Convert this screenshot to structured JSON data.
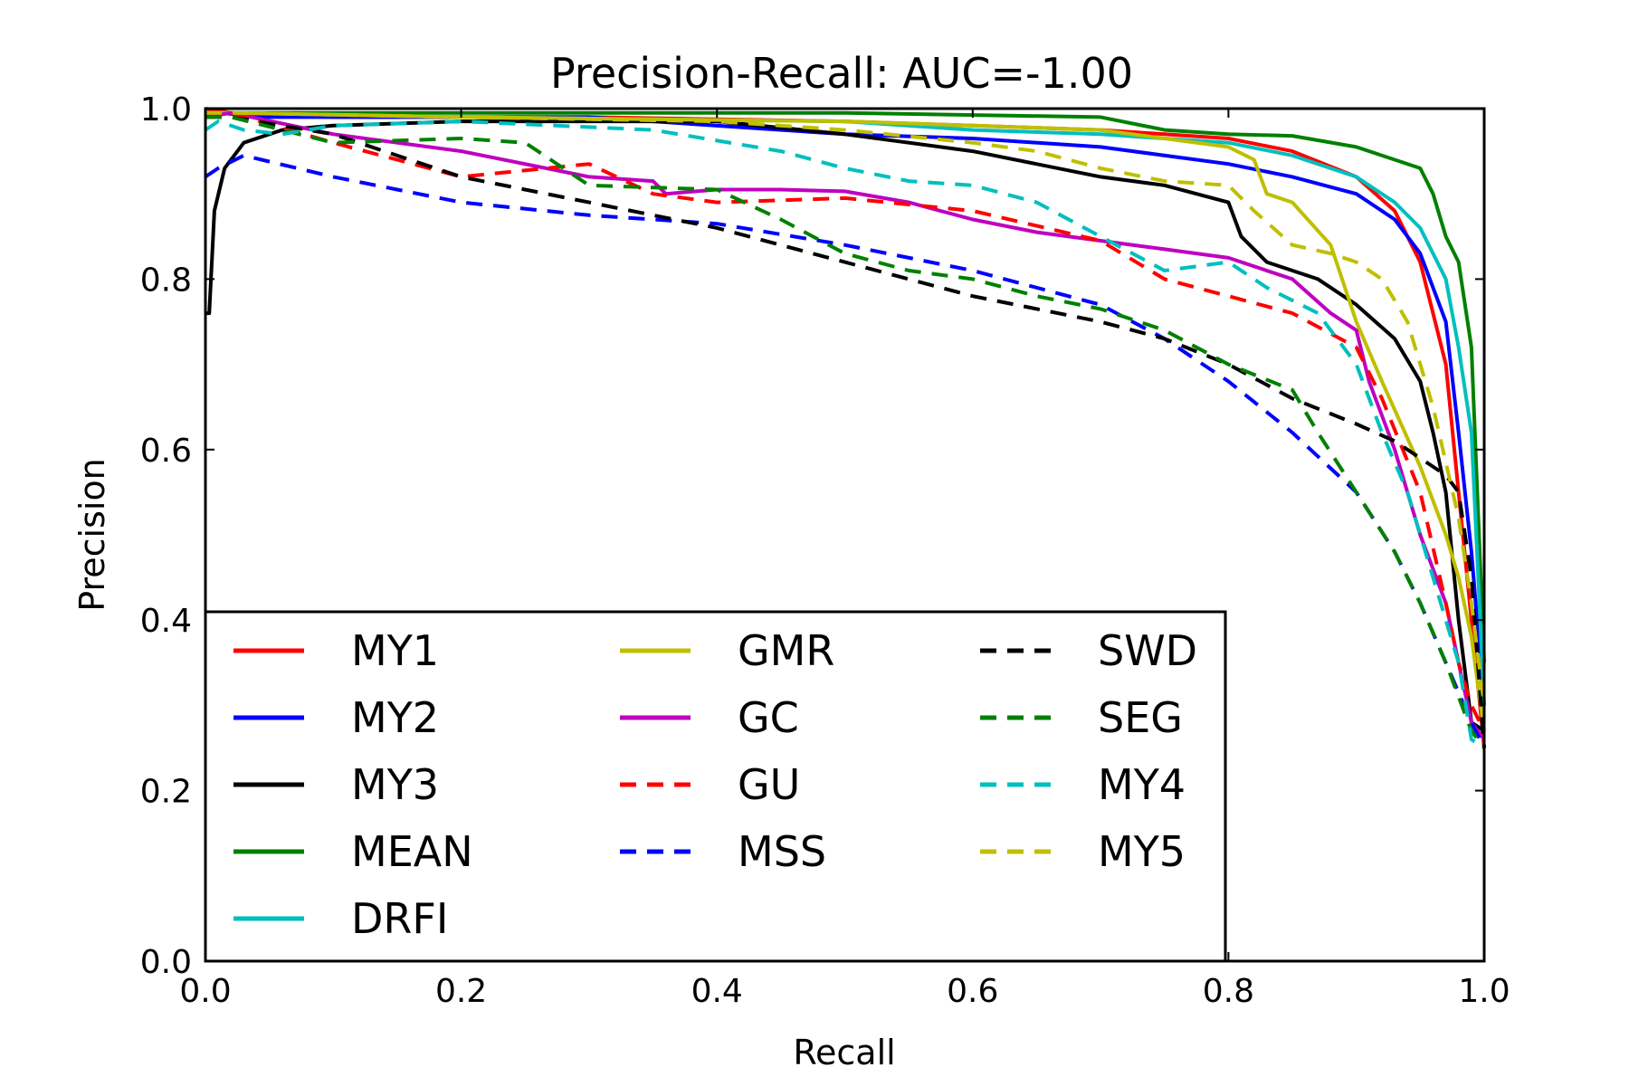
{
  "chart_data": {
    "type": "line",
    "title": "Precision-Recall: AUC=-1.00",
    "xlabel": "Recall",
    "ylabel": "Precision",
    "xlim": [
      0.0,
      1.0
    ],
    "ylim": [
      0.0,
      1.0
    ],
    "xticks": [
      "0.0",
      "0.2",
      "0.4",
      "0.6",
      "0.8",
      "1.0"
    ],
    "yticks": [
      "0.0",
      "0.2",
      "0.4",
      "0.6",
      "0.8",
      "1.0"
    ],
    "grid": false,
    "legend_position": "lower-left",
    "series": [
      {
        "name": "MY1",
        "color": "#ff0000",
        "dash": "solid",
        "x": [
          0.0,
          0.02,
          0.1,
          0.3,
          0.5,
          0.6,
          0.7,
          0.75,
          0.8,
          0.85,
          0.9,
          0.93,
          0.95,
          0.97,
          0.98,
          0.99,
          1.0
        ],
        "y": [
          1.0,
          0.995,
          0.99,
          0.99,
          0.985,
          0.98,
          0.975,
          0.97,
          0.965,
          0.95,
          0.92,
          0.88,
          0.82,
          0.7,
          0.55,
          0.4,
          0.25
        ]
      },
      {
        "name": "MY2",
        "color": "#0000ff",
        "dash": "solid",
        "x": [
          0.0,
          0.01,
          0.05,
          0.3,
          0.35,
          0.5,
          0.6,
          0.7,
          0.8,
          0.85,
          0.9,
          0.93,
          0.95,
          0.97,
          0.98,
          0.99,
          1.0
        ],
        "y": [
          0.99,
          0.995,
          0.99,
          0.99,
          0.985,
          0.97,
          0.965,
          0.955,
          0.935,
          0.92,
          0.9,
          0.87,
          0.83,
          0.75,
          0.62,
          0.48,
          0.3
        ]
      },
      {
        "name": "MY3",
        "color": "#000000",
        "dash": "solid",
        "x": [
          0.0,
          0.003,
          0.007,
          0.015,
          0.03,
          0.06,
          0.1,
          0.2,
          0.4,
          0.5,
          0.6,
          0.7,
          0.75,
          0.8,
          0.81,
          0.83,
          0.87,
          0.9,
          0.93,
          0.95,
          0.96,
          0.97,
          0.98,
          0.99,
          1.0
        ],
        "y": [
          0.76,
          0.76,
          0.88,
          0.93,
          0.96,
          0.975,
          0.98,
          0.985,
          0.985,
          0.97,
          0.95,
          0.92,
          0.91,
          0.89,
          0.85,
          0.82,
          0.8,
          0.77,
          0.73,
          0.68,
          0.62,
          0.55,
          0.4,
          0.28,
          0.27
        ]
      },
      {
        "name": "MEAN",
        "color": "#008000",
        "dash": "solid",
        "x": [
          0.0,
          0.02,
          0.2,
          0.5,
          0.7,
          0.75,
          0.8,
          0.85,
          0.9,
          0.93,
          0.95,
          0.96,
          0.97,
          0.98,
          0.99,
          1.0
        ],
        "y": [
          0.995,
          0.995,
          0.995,
          0.995,
          0.99,
          0.975,
          0.97,
          0.968,
          0.955,
          0.94,
          0.93,
          0.9,
          0.85,
          0.82,
          0.72,
          0.35
        ]
      },
      {
        "name": "DRFI",
        "color": "#00bfbf",
        "dash": "solid",
        "x": [
          0.0,
          0.02,
          0.2,
          0.5,
          0.6,
          0.7,
          0.75,
          0.8,
          0.85,
          0.9,
          0.93,
          0.95,
          0.97,
          0.98,
          0.99,
          1.0
        ],
        "y": [
          0.99,
          0.995,
          0.99,
          0.985,
          0.975,
          0.97,
          0.965,
          0.96,
          0.945,
          0.92,
          0.89,
          0.86,
          0.8,
          0.72,
          0.62,
          0.3
        ]
      },
      {
        "name": "GMR",
        "color": "#bfbf00",
        "dash": "solid",
        "x": [
          0.0,
          0.02,
          0.2,
          0.5,
          0.6,
          0.7,
          0.75,
          0.8,
          0.82,
          0.83,
          0.85,
          0.88,
          0.9,
          0.92,
          0.95,
          0.97,
          0.98,
          0.99,
          1.0
        ],
        "y": [
          0.995,
          0.995,
          0.99,
          0.985,
          0.98,
          0.975,
          0.965,
          0.955,
          0.94,
          0.9,
          0.89,
          0.84,
          0.75,
          0.68,
          0.58,
          0.5,
          0.45,
          0.38,
          0.27
        ]
      },
      {
        "name": "GC",
        "color": "#bf00bf",
        "dash": "solid",
        "x": [
          0.0,
          0.02,
          0.1,
          0.2,
          0.3,
          0.35,
          0.36,
          0.4,
          0.45,
          0.5,
          0.55,
          0.6,
          0.65,
          0.7,
          0.75,
          0.8,
          0.85,
          0.88,
          0.9,
          0.91,
          0.93,
          0.95,
          0.97,
          0.98,
          0.99,
          1.0
        ],
        "y": [
          0.99,
          0.995,
          0.97,
          0.95,
          0.92,
          0.915,
          0.9,
          0.905,
          0.905,
          0.903,
          0.89,
          0.87,
          0.855,
          0.845,
          0.835,
          0.825,
          0.8,
          0.76,
          0.74,
          0.68,
          0.6,
          0.5,
          0.42,
          0.35,
          0.28,
          0.26
        ]
      },
      {
        "name": "GU",
        "color": "#ff0000",
        "dash": "dashed",
        "x": [
          0.0,
          0.02,
          0.1,
          0.2,
          0.3,
          0.35,
          0.4,
          0.5,
          0.6,
          0.7,
          0.75,
          0.8,
          0.85,
          0.9,
          0.92,
          0.95,
          0.97,
          0.98,
          0.99,
          1.0
        ],
        "y": [
          0.99,
          0.995,
          0.96,
          0.92,
          0.935,
          0.9,
          0.89,
          0.895,
          0.88,
          0.845,
          0.8,
          0.78,
          0.76,
          0.72,
          0.66,
          0.55,
          0.42,
          0.35,
          0.3,
          0.27
        ]
      },
      {
        "name": "MSS",
        "color": "#0000ff",
        "dash": "dashed",
        "x": [
          0.0,
          0.01,
          0.03,
          0.1,
          0.2,
          0.3,
          0.4,
          0.5,
          0.6,
          0.7,
          0.75,
          0.8,
          0.85,
          0.9,
          0.93,
          0.95,
          0.97,
          0.99,
          1.0
        ],
        "y": [
          0.92,
          0.93,
          0.945,
          0.92,
          0.89,
          0.875,
          0.865,
          0.84,
          0.81,
          0.77,
          0.73,
          0.68,
          0.62,
          0.55,
          0.48,
          0.42,
          0.35,
          0.28,
          0.25
        ]
      },
      {
        "name": "SWD",
        "color": "#000000",
        "dash": "dashed",
        "x": [
          0.0,
          0.02,
          0.1,
          0.2,
          0.3,
          0.4,
          0.5,
          0.6,
          0.7,
          0.75,
          0.8,
          0.85,
          0.9,
          0.93,
          0.95,
          0.97,
          0.98,
          0.99,
          1.0
        ],
        "y": [
          0.99,
          0.99,
          0.97,
          0.92,
          0.89,
          0.86,
          0.82,
          0.78,
          0.75,
          0.73,
          0.7,
          0.66,
          0.63,
          0.61,
          0.59,
          0.57,
          0.55,
          0.45,
          0.25
        ]
      },
      {
        "name": "SEG",
        "color": "#008000",
        "dash": "dashed",
        "x": [
          0.0,
          0.02,
          0.1,
          0.2,
          0.25,
          0.3,
          0.4,
          0.45,
          0.5,
          0.55,
          0.6,
          0.65,
          0.7,
          0.75,
          0.8,
          0.85,
          0.87,
          0.9,
          0.93,
          0.95,
          0.97,
          0.99,
          1.0
        ],
        "y": [
          0.99,
          0.99,
          0.96,
          0.965,
          0.96,
          0.91,
          0.905,
          0.87,
          0.83,
          0.81,
          0.8,
          0.78,
          0.765,
          0.74,
          0.7,
          0.67,
          0.62,
          0.55,
          0.48,
          0.42,
          0.35,
          0.27,
          0.25
        ]
      },
      {
        "name": "MY4",
        "color": "#00bfbf",
        "dash": "dashed",
        "x": [
          0.0,
          0.01,
          0.03,
          0.06,
          0.1,
          0.2,
          0.35,
          0.45,
          0.5,
          0.55,
          0.6,
          0.65,
          0.7,
          0.75,
          0.8,
          0.83,
          0.87,
          0.9,
          0.92,
          0.94,
          0.96,
          0.98,
          0.99,
          1.0
        ],
        "y": [
          0.975,
          0.985,
          0.975,
          0.97,
          0.98,
          0.985,
          0.975,
          0.95,
          0.93,
          0.915,
          0.91,
          0.89,
          0.85,
          0.81,
          0.82,
          0.79,
          0.76,
          0.7,
          0.62,
          0.55,
          0.45,
          0.35,
          0.26,
          0.25
        ]
      },
      {
        "name": "MY5",
        "color": "#bfbf00",
        "dash": "dashed",
        "x": [
          0.0,
          0.02,
          0.2,
          0.4,
          0.5,
          0.6,
          0.65,
          0.7,
          0.75,
          0.8,
          0.82,
          0.85,
          0.88,
          0.9,
          0.92,
          0.94,
          0.96,
          0.98,
          0.99,
          1.0
        ],
        "y": [
          0.995,
          0.995,
          0.99,
          0.985,
          0.975,
          0.96,
          0.95,
          0.93,
          0.915,
          0.91,
          0.88,
          0.84,
          0.83,
          0.82,
          0.8,
          0.75,
          0.65,
          0.52,
          0.42,
          0.3
        ]
      }
    ]
  }
}
